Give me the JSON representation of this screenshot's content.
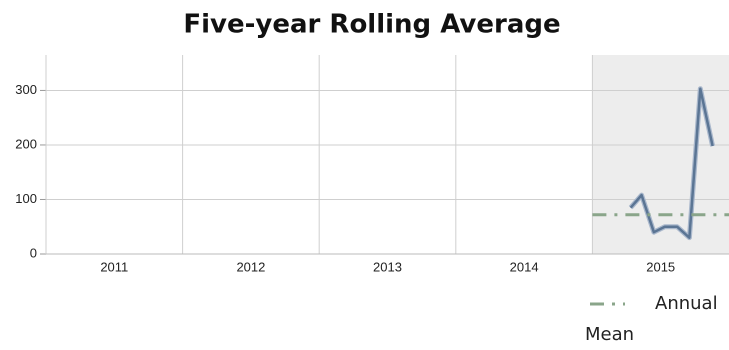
{
  "chart_data": {
    "type": "line",
    "title": "Five-year Rolling Average",
    "xlim": [
      2011,
      2016
    ],
    "xticks": [
      2011,
      2012,
      2013,
      2014,
      2015
    ],
    "ylim": [
      0,
      365
    ],
    "yticks": [
      0,
      100,
      200,
      300
    ],
    "grid": true,
    "shaded_range": [
      2015,
      2016
    ],
    "shade_color": "#ededed",
    "legend": "bottom-right",
    "series": [
      {
        "color": "#5b7594",
        "x": [
          2015.28,
          2015.36,
          2015.45,
          2015.53,
          2015.62,
          2015.71,
          2015.79,
          2015.88
        ],
        "values": [
          85,
          108,
          40,
          50,
          50,
          30,
          303,
          198
        ]
      },
      {
        "name": "Annual Mean",
        "color": "#8aa58a",
        "dash": "dash-dot",
        "x": [
          2015,
          2016
        ],
        "values": [
          72,
          72
        ]
      }
    ]
  }
}
